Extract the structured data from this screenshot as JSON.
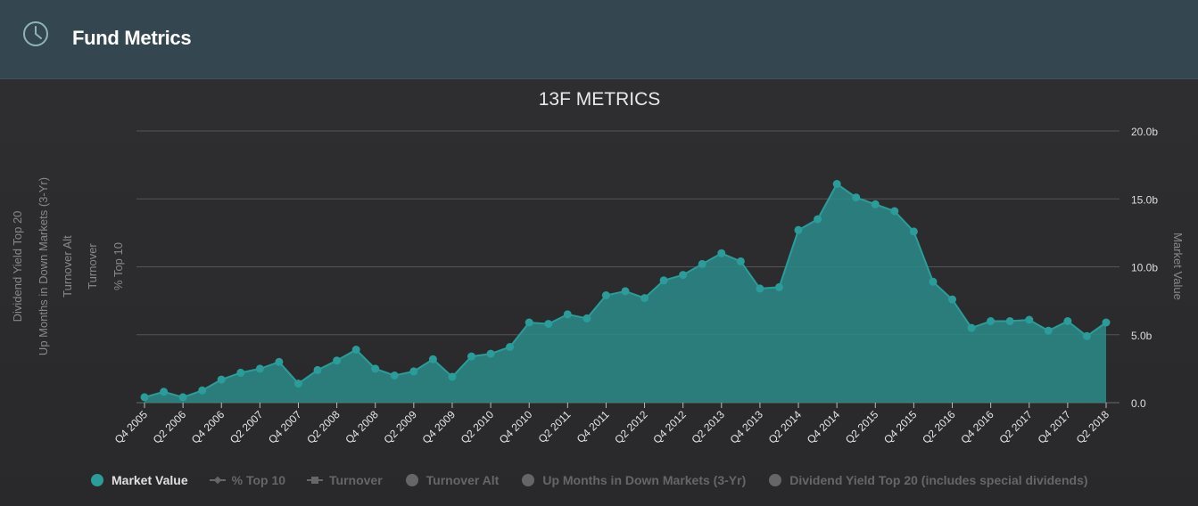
{
  "header": {
    "title": "Fund Metrics",
    "icon": "clock-icon"
  },
  "colors": {
    "series": "#2a9d9a",
    "fill": "#2a8c89",
    "muted": "#666666",
    "grid": "#555555",
    "text": "#cccccc"
  },
  "chart_data": {
    "type": "area",
    "title": "13F METRICS",
    "grid": true,
    "legend_position": "bottom",
    "y_right": {
      "label": "Market Value",
      "ticks": [
        "0.0",
        "5.0b",
        "10.0b",
        "15.0b",
        "20.0b"
      ],
      "tick_values": [
        0,
        5,
        10,
        15,
        20
      ],
      "ylim": [
        0,
        20
      ]
    },
    "y_left_labels": [
      "% Top 10",
      "Turnover",
      "Turnover Alt",
      "Up Months in Down Markets (3-Yr)",
      "Dividend Yield Top 20"
    ],
    "x_tick_labels": [
      "Q4 2005",
      "Q2 2006",
      "Q4 2006",
      "Q2 2007",
      "Q4 2007",
      "Q2 2008",
      "Q4 2008",
      "Q2 2009",
      "Q4 2009",
      "Q2 2010",
      "Q4 2010",
      "Q2 2011",
      "Q4 2011",
      "Q2 2012",
      "Q4 2012",
      "Q2 2013",
      "Q4 2013",
      "Q2 2014",
      "Q4 2014",
      "Q2 2015",
      "Q4 2015",
      "Q2 2016",
      "Q4 2016",
      "Q2 2017",
      "Q4 2017",
      "Q2 2018"
    ],
    "series": [
      {
        "name": "Market Value",
        "x": [
          "Q4 2005",
          "Q1 2006",
          "Q2 2006",
          "Q3 2006",
          "Q4 2006",
          "Q1 2007",
          "Q2 2007",
          "Q3 2007",
          "Q4 2007",
          "Q1 2008",
          "Q2 2008",
          "Q3 2008",
          "Q4 2008",
          "Q1 2009",
          "Q2 2009",
          "Q3 2009",
          "Q4 2009",
          "Q1 2010",
          "Q2 2010",
          "Q3 2010",
          "Q4 2010",
          "Q1 2011",
          "Q2 2011",
          "Q3 2011",
          "Q4 2011",
          "Q1 2012",
          "Q2 2012",
          "Q3 2012",
          "Q4 2012",
          "Q1 2013",
          "Q2 2013",
          "Q3 2013",
          "Q4 2013",
          "Q1 2014",
          "Q2 2014",
          "Q3 2014",
          "Q4 2014",
          "Q1 2015",
          "Q2 2015",
          "Q3 2015",
          "Q4 2015",
          "Q1 2016",
          "Q2 2016",
          "Q3 2016",
          "Q4 2016",
          "Q1 2017",
          "Q2 2017",
          "Q3 2017",
          "Q4 2017",
          "Q1 2018",
          "Q2 2018"
        ],
        "values": [
          0.4,
          0.8,
          0.4,
          0.9,
          1.7,
          2.2,
          2.5,
          3.0,
          1.4,
          2.4,
          3.1,
          3.9,
          2.5,
          2.0,
          2.3,
          3.2,
          1.9,
          3.4,
          3.6,
          4.1,
          5.9,
          5.8,
          6.5,
          6.2,
          7.9,
          8.2,
          7.7,
          9.0,
          9.4,
          10.2,
          11.0,
          10.4,
          8.4,
          8.5,
          12.7,
          13.5,
          16.1,
          15.1,
          14.6,
          14.1,
          12.6,
          8.9,
          7.6,
          5.5,
          6.0,
          6.0,
          6.1,
          5.3,
          6.0,
          4.9,
          5.9
        ]
      }
    ],
    "legend": [
      {
        "name": "Market Value",
        "symbol": "circle",
        "active": true
      },
      {
        "name": "% Top 10",
        "symbol": "diamond",
        "active": false
      },
      {
        "name": "Turnover",
        "symbol": "square",
        "active": false
      },
      {
        "name": "Turnover Alt",
        "symbol": "circle",
        "active": false
      },
      {
        "name": "Up Months in Down Markets (3-Yr)",
        "symbol": "circle",
        "active": false
      },
      {
        "name": "Dividend Yield Top 20 (includes special dividends)",
        "symbol": "circle",
        "active": false
      }
    ]
  }
}
